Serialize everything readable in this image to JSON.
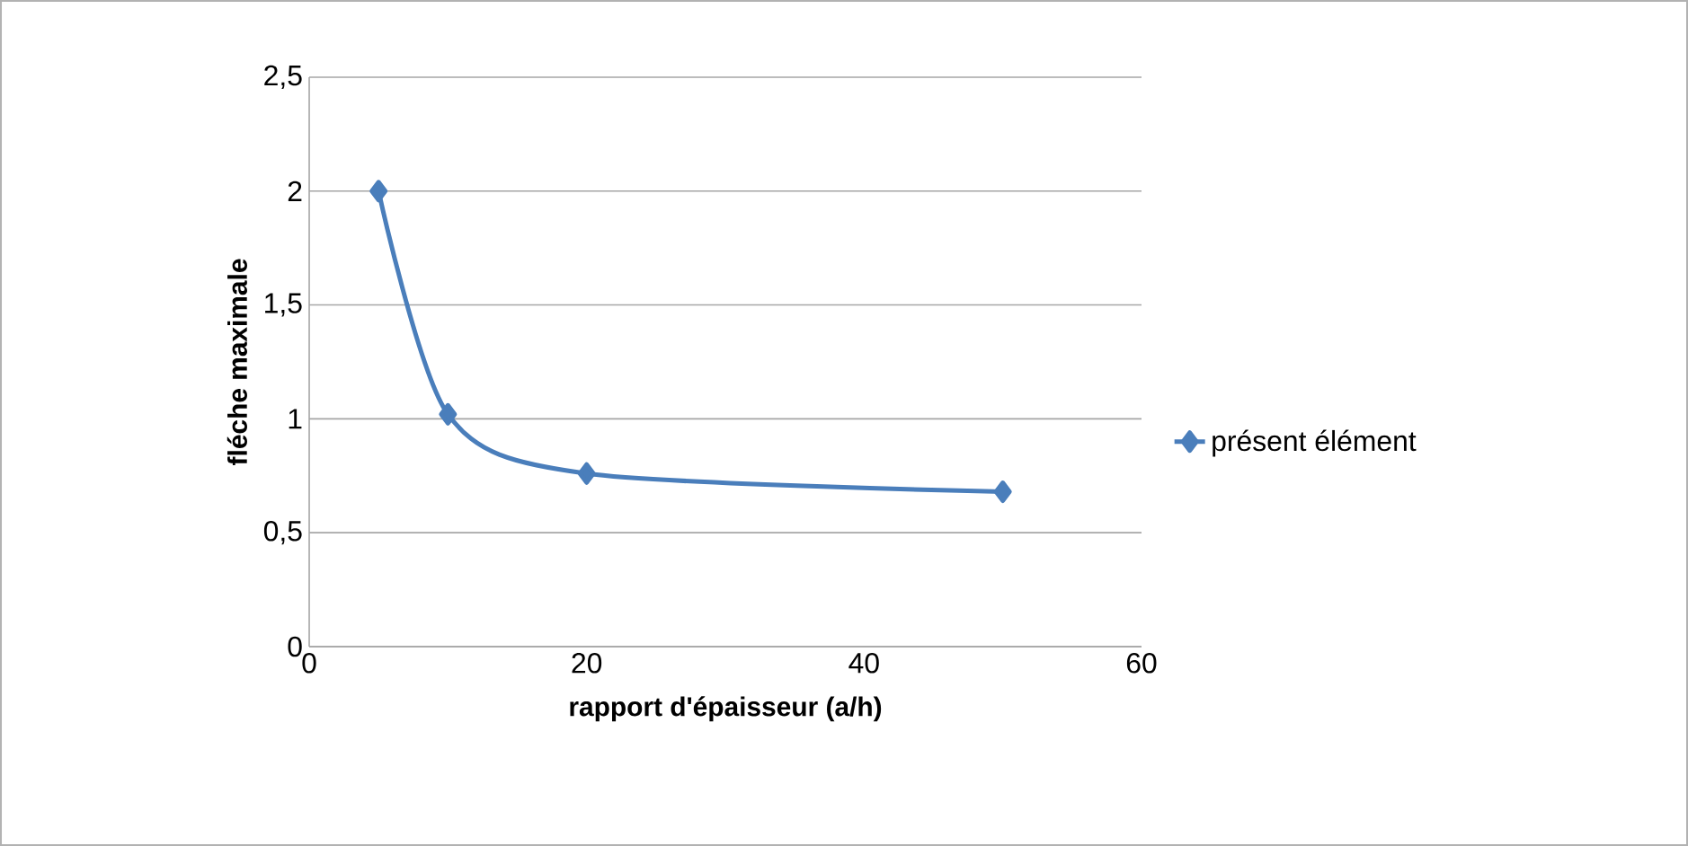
{
  "chart_data": {
    "type": "line",
    "xlabel": "rapport d'épaisseur (a/h)",
    "ylabel": "fléche maximale",
    "x": [
      5,
      10,
      20,
      50
    ],
    "series": [
      {
        "name": "présent élément",
        "color": "#4a7ebb",
        "values": [
          2.0,
          1.02,
          0.76,
          0.68
        ]
      }
    ],
    "xlim": [
      0,
      60
    ],
    "ylim": [
      0,
      2.5
    ],
    "xticks": [
      0,
      20,
      40,
      60
    ],
    "yticks": [
      0,
      {
        "value": 0.5,
        "label": "0,5"
      },
      1,
      {
        "value": 1.5,
        "label": "1,5"
      },
      2,
      {
        "value": 2.5,
        "label": "2,5"
      }
    ],
    "grid": "y",
    "legend": "right",
    "marker": "diamond",
    "line_style": "solid"
  }
}
